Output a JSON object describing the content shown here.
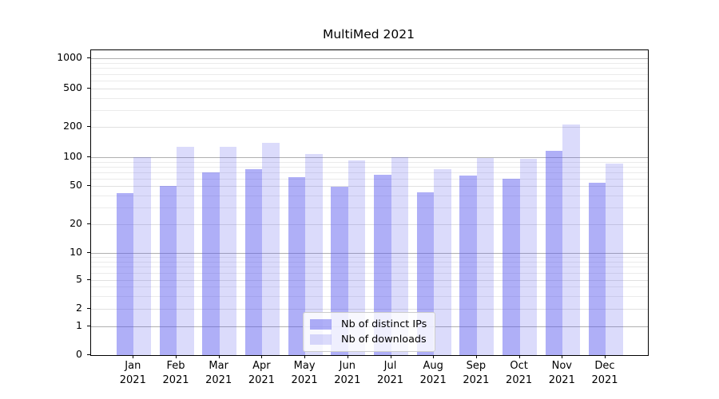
{
  "title": "MultiMed 2021",
  "chart_data": {
    "type": "bar",
    "title": "MultiMed 2021",
    "categories": [
      "Jan",
      "Feb",
      "Mar",
      "Apr",
      "May",
      "Jun",
      "Jul",
      "Aug",
      "Sep",
      "Oct",
      "Nov",
      "Dec"
    ],
    "year": "2021",
    "series": [
      {
        "name": "Nb of distinct IPs",
        "color": "#5555ee",
        "alpha": 0.47,
        "values": [
          42,
          50,
          70,
          75,
          62,
          49,
          65,
          43,
          64,
          60,
          115,
          54
        ]
      },
      {
        "name": "Nb of downloads",
        "color": "#5555ee",
        "alpha": 0.21,
        "values": [
          100,
          128,
          128,
          138,
          108,
          92,
          100,
          75,
          98,
          97,
          213,
          86
        ]
      }
    ],
    "xlabel": "",
    "ylabel": "",
    "yscale": "symlog-like",
    "y_ticks": [
      0,
      1,
      2,
      5,
      10,
      20,
      50,
      100,
      200,
      500,
      1000
    ],
    "ylim": [
      0,
      1200
    ],
    "grid": true,
    "legend_position": "lower center",
    "grid_major_color": "#b0b0b0",
    "grid_minor_color": "#ebebeb"
  }
}
